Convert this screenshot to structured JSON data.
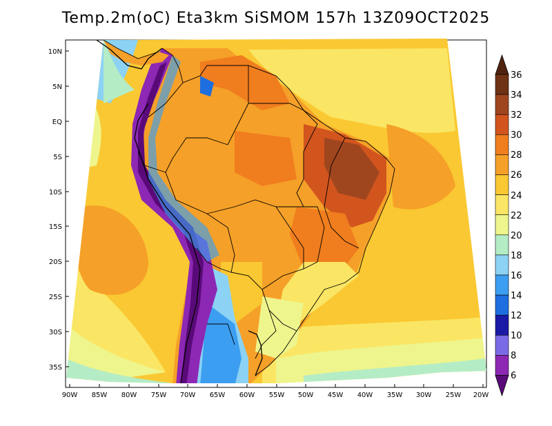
{
  "title": "Temp.2m(oC) Eta3km SiSMOM 157h 13Z09OCT2025",
  "map": {
    "variable": "2 m air temperature",
    "units": "oC",
    "region": "South America",
    "lat_labels": [
      "10N",
      "5N",
      "EQ",
      "5S",
      "10S",
      "15S",
      "20S",
      "25S",
      "30S",
      "35S"
    ],
    "lon_labels": [
      "90W",
      "85W",
      "80W",
      "75W",
      "70W",
      "65W",
      "60W",
      "55W",
      "50W",
      "45W",
      "40W",
      "35W",
      "30W",
      "25W",
      "20W"
    ]
  },
  "colorbar": {
    "levels": [
      "6",
      "8",
      "10",
      "12",
      "14",
      "16",
      "18",
      "20",
      "22",
      "24",
      "26",
      "28",
      "30",
      "32",
      "34",
      "36"
    ],
    "colors": [
      "#5a0a78",
      "#8c28b4",
      "#7a6ae6",
      "#1a1aa6",
      "#1e6ee0",
      "#3c9ef0",
      "#8cd2f4",
      "#b4ecc6",
      "#eef58c",
      "#fae664",
      "#fac832",
      "#f5a028",
      "#f07d1e",
      "#d2551e",
      "#a0461e",
      "#6e3214",
      "#50230f"
    ]
  }
}
